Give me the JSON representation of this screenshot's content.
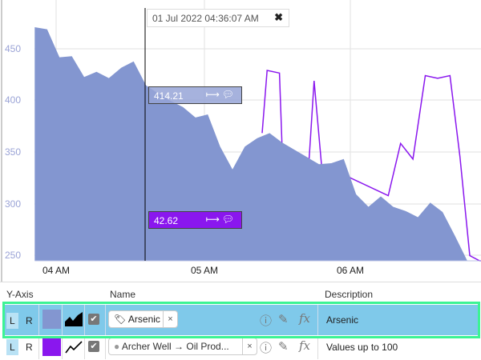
{
  "chart": {
    "cursor_time": "01 Jul 2022 04:36:07 AM",
    "y_ticks": [
      "450",
      "400",
      "350",
      "300",
      "250"
    ],
    "x_ticks": [
      "04 AM",
      "05 AM",
      "06 AM"
    ],
    "ylim": [
      245,
      490
    ],
    "series": [
      {
        "description": "Arsenic",
        "type": "area",
        "color": "#8396d0",
        "cursor_value": "414.21",
        "times": [
          "03:52",
          "03:57",
          "04:02",
          "04:07",
          "04:12",
          "04:17",
          "04:22",
          "04:27",
          "04:32",
          "04:37",
          "04:42",
          "04:47",
          "04:52",
          "04:57",
          "05:02",
          "05:07",
          "05:12",
          "05:17",
          "05:22",
          "05:27",
          "05:32",
          "05:37",
          "05:42",
          "05:47",
          "05:52",
          "05:57",
          "06:02",
          "06:07",
          "06:12",
          "06:17",
          "06:22",
          "06:27",
          "06:32",
          "06:37",
          "06:42",
          "06:47"
        ],
        "values": [
          470,
          468,
          441,
          442,
          422,
          427,
          421,
          431,
          437,
          414,
          406,
          399,
          393,
          383,
          386,
          355,
          333,
          355,
          363,
          368,
          359,
          352,
          345,
          338,
          339,
          343,
          309,
          297,
          307,
          297,
          293,
          287,
          301,
          292,
          269,
          245
        ]
      },
      {
        "description": "Values up to 100",
        "type": "line",
        "color": "#8a17ee",
        "cursor_value": "42.62",
        "ylim": [
          0,
          100
        ],
        "times": [
          "05:24",
          "05:26",
          "05:31",
          "05:32",
          "05:43",
          "05:45",
          "05:48",
          "06:15",
          "06:20",
          "06:25",
          "06:30",
          "06:35",
          "06:40",
          "06:44",
          "06:48",
          "06:52"
        ],
        "values": [
          49,
          73,
          72,
          45,
          39,
          69,
          37,
          25,
          45,
          39,
          71,
          70,
          71,
          40,
          2,
          0
        ]
      }
    ]
  },
  "table": {
    "headers": {
      "y_axis": "Y-Axis",
      "name": "Name",
      "description": "Description"
    },
    "rows": [
      {
        "left": "L",
        "right": "R",
        "color": "#8396d0",
        "chart_type_icon": "area-chart-icon",
        "checked": true,
        "name": "Arsenic",
        "name_icon": "tag-icon",
        "description": "Arsenic",
        "selected": true
      },
      {
        "left": "L",
        "right": "R",
        "color": "#8a17ee",
        "chart_type_icon": "line-chart-icon",
        "checked": true,
        "name": "Archer Well → Oil Prod...",
        "name_icon": "dot-icon",
        "description": "Values up to 100",
        "selected": false
      }
    ],
    "selection_color": "#3cf394",
    "row_highlight": "#7fc9ea"
  }
}
